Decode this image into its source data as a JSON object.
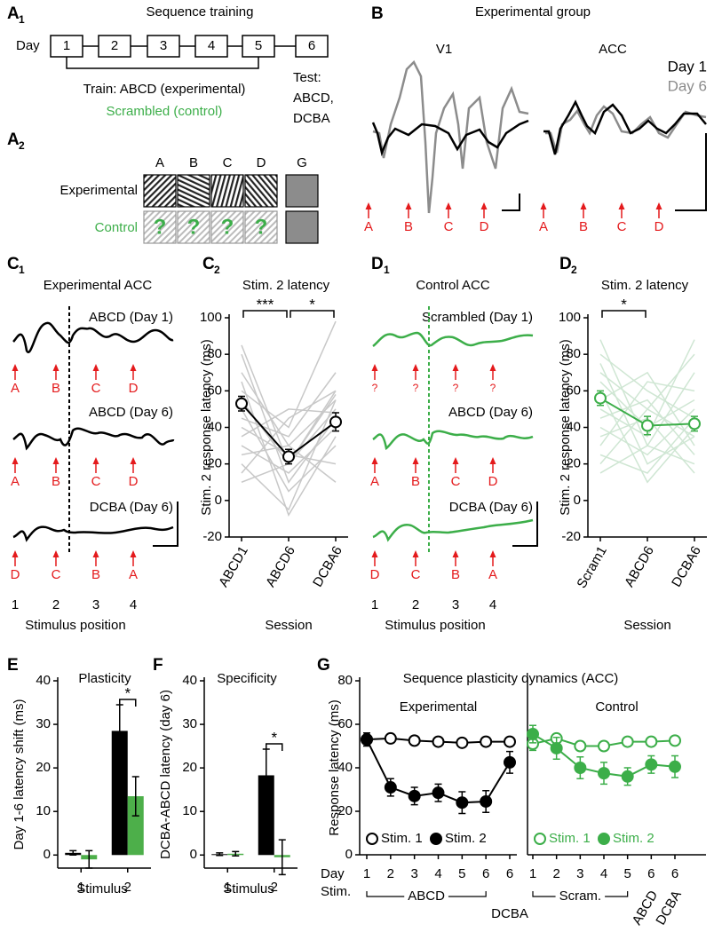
{
  "sequence_training": {
    "label": "A",
    "label_sub": "1",
    "title": "Sequence training",
    "day_label": "Day",
    "days": [
      "1",
      "2",
      "3",
      "4",
      "5",
      "6"
    ],
    "train": "Train: ABCD (experimental)",
    "scrambled": "Scrambled (control)",
    "test": [
      "Test:",
      "ABCD,",
      "DCBA"
    ]
  },
  "stimuli": {
    "label": "A",
    "label_sub": "2",
    "columns": [
      "A",
      "B",
      "C",
      "D",
      "G"
    ],
    "rows": [
      "Experimental",
      "Control"
    ],
    "unknown": "?"
  },
  "experimental_group": {
    "label": "B",
    "title": "Experimental group",
    "areas": [
      "V1",
      "ACC"
    ],
    "legend": [
      "Day 1",
      "Day 6"
    ],
    "markers": [
      "A",
      "B",
      "C",
      "D"
    ]
  },
  "experimental_acc": {
    "label": "C",
    "label_sub": "1",
    "title": "Experimental ACC",
    "traces": [
      "ABCD (Day 1)",
      "ABCD (Day 6)",
      "DCBA (Day 6)"
    ],
    "markers": [
      [
        "A",
        "B",
        "C",
        "D"
      ],
      [
        "A",
        "B",
        "C",
        "D"
      ],
      [
        "D",
        "C",
        "B",
        "A"
      ]
    ],
    "positions": [
      "1",
      "2",
      "3",
      "4"
    ],
    "xlabel": "Stimulus position"
  },
  "control_acc": {
    "label": "D",
    "label_sub": "1",
    "title": "Control ACC",
    "traces": [
      "Scrambled (Day 1)",
      "ABCD (Day 6)",
      "DCBA (Day 6)"
    ],
    "markers": [
      [
        "?",
        "?",
        "?",
        "?"
      ],
      [
        "A",
        "B",
        "C",
        "D"
      ],
      [
        "D",
        "C",
        "B",
        "A"
      ]
    ],
    "positions": [
      "1",
      "2",
      "3",
      "4"
    ],
    "xlabel": "Stimulus position"
  },
  "chart_data": [
    {
      "type": "line",
      "label": "C",
      "label_sub": "2",
      "title": "Stim. 2 latency",
      "ylabel": "Stim. 2 response latency (ms)",
      "xlabel": "Session",
      "categories": [
        "ABCD1",
        "ABCD6",
        "DCBA6"
      ],
      "series": [
        {
          "color": "#000000",
          "filled": false,
          "values": [
            53,
            24,
            43
          ],
          "errors": [
            4,
            4,
            5
          ]
        }
      ],
      "individual": {
        "color": "#c8c8c8",
        "values": [
          [
            85,
            20,
            60
          ],
          [
            80,
            10,
            45
          ],
          [
            70,
            30,
            55
          ],
          [
            65,
            -8,
            35
          ],
          [
            60,
            40,
            98
          ],
          [
            55,
            20,
            58
          ],
          [
            50,
            5,
            30
          ],
          [
            45,
            35,
            70
          ],
          [
            40,
            25,
            20
          ],
          [
            35,
            50,
            48
          ],
          [
            30,
            15,
            40
          ],
          [
            25,
            30,
            10
          ],
          [
            20,
            -5,
            55
          ],
          [
            15,
            45,
            60
          ],
          [
            10,
            20,
            50
          ]
        ]
      },
      "ylim": [
        -20,
        100
      ],
      "yticks": [
        -20,
        0,
        20,
        40,
        60,
        80,
        100
      ],
      "significance": [
        "***",
        "*"
      ]
    },
    {
      "type": "line",
      "label": "D",
      "label_sub": "2",
      "title": "Stim. 2 latency",
      "ylabel": "Stim. 2 response latency (ms)",
      "xlabel": "Session",
      "categories": [
        "Scram1",
        "ABCD6",
        "DCBA6"
      ],
      "series": [
        {
          "color": "#3cae49",
          "filled": false,
          "values": [
            56,
            41,
            42
          ],
          "errors": [
            4,
            5,
            4
          ]
        }
      ],
      "individual": {
        "color": "#cfe6d3",
        "values": [
          [
            88,
            30,
            20
          ],
          [
            80,
            60,
            45
          ],
          [
            75,
            20,
            35
          ],
          [
            70,
            50,
            80
          ],
          [
            65,
            40,
            55
          ],
          [
            60,
            10,
            40
          ],
          [
            55,
            70,
            30
          ],
          [
            50,
            35,
            88
          ],
          [
            45,
            55,
            25
          ],
          [
            40,
            25,
            50
          ],
          [
            35,
            45,
            15
          ],
          [
            30,
            65,
            60
          ],
          [
            25,
            15,
            45
          ],
          [
            20,
            50,
            35
          ],
          [
            15,
            30,
            70
          ]
        ]
      },
      "ylim": [
        -20,
        100
      ],
      "yticks": [
        -20,
        0,
        20,
        40,
        60,
        80,
        100
      ],
      "significance": [
        "*"
      ]
    },
    {
      "type": "bar",
      "label": "E",
      "title": "Plasticity",
      "ylabel": "Day 1-6 latency shift (ms)",
      "xlabel": "Stimulus",
      "categories": [
        "1",
        "2"
      ],
      "series": [
        {
          "color": "#000000",
          "values": [
            0.5,
            28.5
          ],
          "errors": [
            0.5,
            6
          ]
        },
        {
          "color": "#4daf4a",
          "values": [
            -1,
            13.5
          ],
          "errors": [
            2,
            4.5
          ]
        }
      ],
      "ylim": [
        -3,
        40
      ],
      "yticks": [
        0,
        10,
        20,
        30,
        40
      ],
      "significance": [
        "*"
      ]
    },
    {
      "type": "bar",
      "label": "F",
      "title": "Specificity",
      "ylabel": "DCBA-ABCD latency (day 6)",
      "xlabel": "Stimulus",
      "categories": [
        "1",
        "2"
      ],
      "series": [
        {
          "color": "#000000",
          "values": [
            0.2,
            18.3
          ],
          "errors": [
            0.3,
            6
          ]
        },
        {
          "color": "#4daf4a",
          "values": [
            0.3,
            -0.5
          ],
          "errors": [
            0.5,
            4
          ]
        }
      ],
      "ylim": [
        -3,
        40
      ],
      "yticks": [
        0,
        10,
        20,
        30,
        40
      ],
      "significance": [
        "*"
      ]
    },
    {
      "type": "line",
      "label": "G",
      "title": "Sequence plasticity dynamics (ACC)",
      "subtitle": "Experimental",
      "ylabel": "Response latency (ms)",
      "x_label": "Day",
      "stim_label": "Stim.",
      "categories": [
        "1",
        "2",
        "3",
        "4",
        "5",
        "6",
        "6"
      ],
      "groups": [
        "ABCD",
        "DCBA"
      ],
      "series": [
        {
          "name": "Stim. 1",
          "color": "#000000",
          "filled": false,
          "values": [
            53,
            53.5,
            52.5,
            52,
            51.5,
            52,
            52
          ],
          "errors": [
            2,
            1.5,
            1.5,
            1.5,
            1.5,
            1.5,
            1.5
          ]
        },
        {
          "name": "Stim. 2",
          "color": "#000000",
          "filled": true,
          "values": [
            53,
            31,
            27,
            28.5,
            24,
            24.5,
            42.5
          ],
          "errors": [
            3,
            4,
            4,
            4,
            5,
            5,
            5
          ]
        }
      ],
      "ylim": [
        0,
        80
      ],
      "yticks": [
        0,
        20,
        40,
        60,
        80
      ]
    },
    {
      "type": "line",
      "subtitle": "Control",
      "categories": [
        "1",
        "2",
        "3",
        "4",
        "5",
        "6",
        "6"
      ],
      "groups": [
        "Scram.",
        "ABCD",
        "DCBA"
      ],
      "series": [
        {
          "name": "Stim. 1",
          "color": "#3cae49",
          "filled": false,
          "values": [
            51,
            53.5,
            50,
            50,
            52,
            52,
            52.5
          ],
          "errors": [
            3,
            2,
            2,
            2,
            2,
            2,
            2
          ]
        },
        {
          "name": "Stim. 2",
          "color": "#3cae49",
          "filled": true,
          "values": [
            55.5,
            49,
            40,
            37.5,
            36,
            41.5,
            40.5
          ],
          "errors": [
            4,
            5,
            5,
            5,
            4,
            4,
            5
          ]
        }
      ],
      "ylim": [
        0,
        80
      ]
    }
  ]
}
